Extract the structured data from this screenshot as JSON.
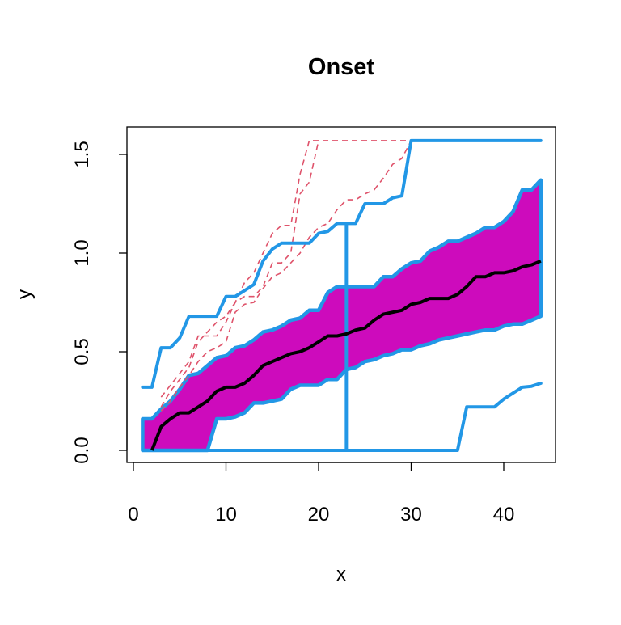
{
  "chart_data": {
    "type": "line",
    "title": "Onset",
    "xlabel": "x",
    "ylabel": "y",
    "xlim": [
      0,
      45
    ],
    "ylim": [
      0,
      1.6
    ],
    "xticks": [
      "0",
      "10",
      "20",
      "30",
      "40"
    ],
    "xtick_values": [
      0,
      10,
      20,
      30,
      40
    ],
    "yticks": [
      "0.0",
      "0.5",
      "1.0",
      "1.5"
    ],
    "ytick_values": [
      0,
      0.5,
      1.0,
      1.5
    ],
    "grid": false,
    "colors": {
      "band": "#CD0BBC",
      "envelope": "#2297E6",
      "median": "#000000",
      "dashed": "#DF536B"
    },
    "x": [
      1,
      2,
      3,
      4,
      5,
      6,
      7,
      8,
      9,
      10,
      11,
      12,
      13,
      14,
      15,
      16,
      17,
      18,
      19,
      20,
      21,
      22,
      23,
      24,
      25,
      26,
      27,
      28,
      29,
      30,
      31,
      32,
      33,
      34,
      35,
      36,
      37,
      38,
      39,
      40,
      41,
      42,
      43,
      44
    ],
    "band_upper": [
      0.16,
      0.16,
      0.21,
      0.25,
      0.31,
      0.38,
      0.39,
      0.43,
      0.47,
      0.48,
      0.52,
      0.53,
      0.56,
      0.6,
      0.61,
      0.63,
      0.66,
      0.67,
      0.71,
      0.71,
      0.8,
      0.83,
      0.83,
      0.83,
      0.83,
      0.83,
      0.88,
      0.88,
      0.92,
      0.95,
      0.96,
      1.01,
      1.03,
      1.06,
      1.06,
      1.08,
      1.1,
      1.13,
      1.13,
      1.16,
      1.21,
      1.32,
      1.32,
      1.37
    ],
    "band_lower": [
      0,
      0,
      0,
      0,
      0,
      0,
      0,
      0,
      0.16,
      0.16,
      0.17,
      0.19,
      0.24,
      0.24,
      0.25,
      0.26,
      0.31,
      0.33,
      0.33,
      0.33,
      0.36,
      0.36,
      0.41,
      0.42,
      0.45,
      0.46,
      0.48,
      0.49,
      0.51,
      0.51,
      0.53,
      0.54,
      0.56,
      0.57,
      0.58,
      0.59,
      0.6,
      0.61,
      0.61,
      0.63,
      0.64,
      0.64,
      0.66,
      0.68
    ],
    "median": [
      null,
      0.0,
      0.12,
      0.16,
      0.19,
      0.19,
      0.22,
      0.25,
      0.3,
      0.32,
      0.32,
      0.34,
      0.38,
      0.43,
      0.45,
      0.47,
      0.49,
      0.5,
      0.52,
      0.55,
      0.58,
      0.58,
      0.59,
      0.61,
      0.62,
      0.66,
      0.69,
      0.7,
      0.71,
      0.74,
      0.75,
      0.77,
      0.77,
      0.77,
      0.79,
      0.83,
      0.88,
      0.88,
      0.9,
      0.9,
      0.91,
      0.93,
      0.94,
      0.96
    ],
    "envelope_upper": [
      0.32,
      0.32,
      0.52,
      0.52,
      0.57,
      0.68,
      0.68,
      0.68,
      0.68,
      0.78,
      0.78,
      0.81,
      0.84,
      0.96,
      1.02,
      1.05,
      1.05,
      1.05,
      1.05,
      1.1,
      1.11,
      1.15,
      1.15,
      1.15,
      1.25,
      1.25,
      1.25,
      1.28,
      1.29,
      1.57,
      1.57,
      1.57,
      1.57,
      1.57,
      1.57,
      1.57,
      1.57,
      1.57,
      1.57,
      1.57,
      1.57,
      1.57,
      1.57,
      1.57
    ],
    "envelope_lower": [
      0,
      0,
      0,
      0,
      0,
      0,
      0,
      0,
      0,
      0,
      0,
      0,
      0,
      0,
      0,
      0,
      0,
      0,
      0,
      0,
      0,
      0,
      0,
      0,
      0,
      0,
      0,
      0,
      0,
      0,
      0,
      0,
      0,
      0,
      0,
      0.22,
      0.22,
      0.22,
      0.22,
      0.26,
      0.29,
      0.32,
      0.325,
      0.34
    ],
    "vertical_line": {
      "x": 23,
      "y": [
        0,
        1.15
      ]
    },
    "dashed_series": [
      {
        "x": [
          3,
          4,
          5,
          6,
          7,
          8,
          9,
          10,
          11,
          12,
          13,
          14,
          15,
          16,
          17,
          18,
          19,
          20,
          21,
          22,
          23,
          24,
          25,
          26,
          27,
          28,
          29,
          30
        ],
        "y": [
          0.27,
          0.33,
          0.39,
          0.45,
          0.58,
          0.58,
          0.58,
          0.65,
          0.75,
          0.85,
          0.9,
          1.0,
          1.1,
          1.14,
          1.14,
          1.4,
          1.57,
          1.57,
          1.57,
          1.57,
          1.57,
          1.57,
          1.57,
          1.57,
          1.57,
          1.57,
          1.57,
          1.57
        ]
      },
      {
        "x": [
          3,
          4,
          5,
          6,
          7,
          8,
          9,
          10,
          11,
          12,
          13,
          14,
          15,
          16,
          17,
          18,
          19,
          20
        ],
        "y": [
          0.22,
          0.3,
          0.36,
          0.42,
          0.55,
          0.6,
          0.65,
          0.68,
          0.75,
          0.78,
          0.78,
          0.83,
          0.95,
          0.95,
          1.0,
          1.3,
          1.36,
          1.57
        ]
      },
      {
        "x": [
          3,
          4,
          5,
          6,
          7,
          8,
          9,
          10,
          11,
          12,
          13,
          14,
          15,
          16,
          17,
          18,
          19,
          20,
          21,
          22,
          23,
          24,
          25,
          26,
          27,
          28,
          29,
          30
        ],
        "y": [
          0.2,
          0.25,
          0.32,
          0.38,
          0.45,
          0.5,
          0.52,
          0.55,
          0.7,
          0.74,
          0.75,
          0.82,
          0.88,
          0.9,
          0.95,
          1.0,
          1.08,
          1.13,
          1.15,
          1.22,
          1.27,
          1.27,
          1.3,
          1.32,
          1.38,
          1.45,
          1.48,
          1.57
        ]
      }
    ]
  }
}
